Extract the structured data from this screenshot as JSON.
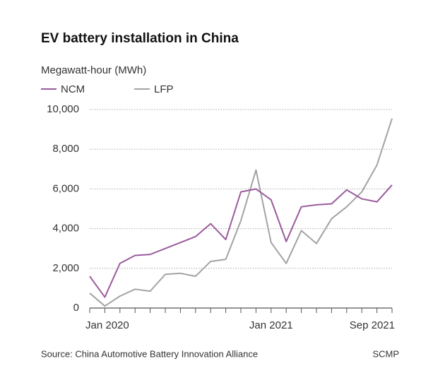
{
  "chart_data": {
    "type": "line",
    "title": "EV battery installation in China",
    "subtitle": "Megawatt-hour (MWh)",
    "categories": [
      "Jan 2020",
      null,
      null,
      null,
      null,
      null,
      null,
      null,
      null,
      null,
      null,
      null,
      "Jan 2021",
      null,
      null,
      null,
      null,
      null,
      null,
      null,
      "Sep 2021"
    ],
    "series": [
      {
        "name": "NCM",
        "color": "#9a5b9c",
        "values": [
          1600,
          550,
          2250,
          2650,
          2700,
          3000,
          3300,
          3600,
          4250,
          3450,
          5850,
          6000,
          5450,
          3350,
          5100,
          5200,
          5250,
          5950,
          5500,
          5350,
          6200
        ]
      },
      {
        "name": "LFP",
        "color": "#a3a3a3",
        "values": [
          750,
          100,
          600,
          950,
          850,
          1700,
          1750,
          1600,
          2350,
          2450,
          4400,
          6950,
          3300,
          2250,
          3900,
          3250,
          4500,
          5100,
          5850,
          7200,
          9550
        ]
      }
    ],
    "ylim": [
      0,
      10000
    ],
    "yticks": [
      0,
      {
        "value": 2000,
        "label": "2,000"
      },
      {
        "value": 4000,
        "label": "4,000"
      },
      {
        "value": 6000,
        "label": "6,000"
      },
      {
        "value": 8000,
        "label": "8,000"
      },
      {
        "value": 10000,
        "label": "10,000"
      }
    ],
    "grid": true,
    "legend": "top-left",
    "source": "Source: China Automotive Battery Innovation Alliance",
    "credit": "SCMP"
  }
}
